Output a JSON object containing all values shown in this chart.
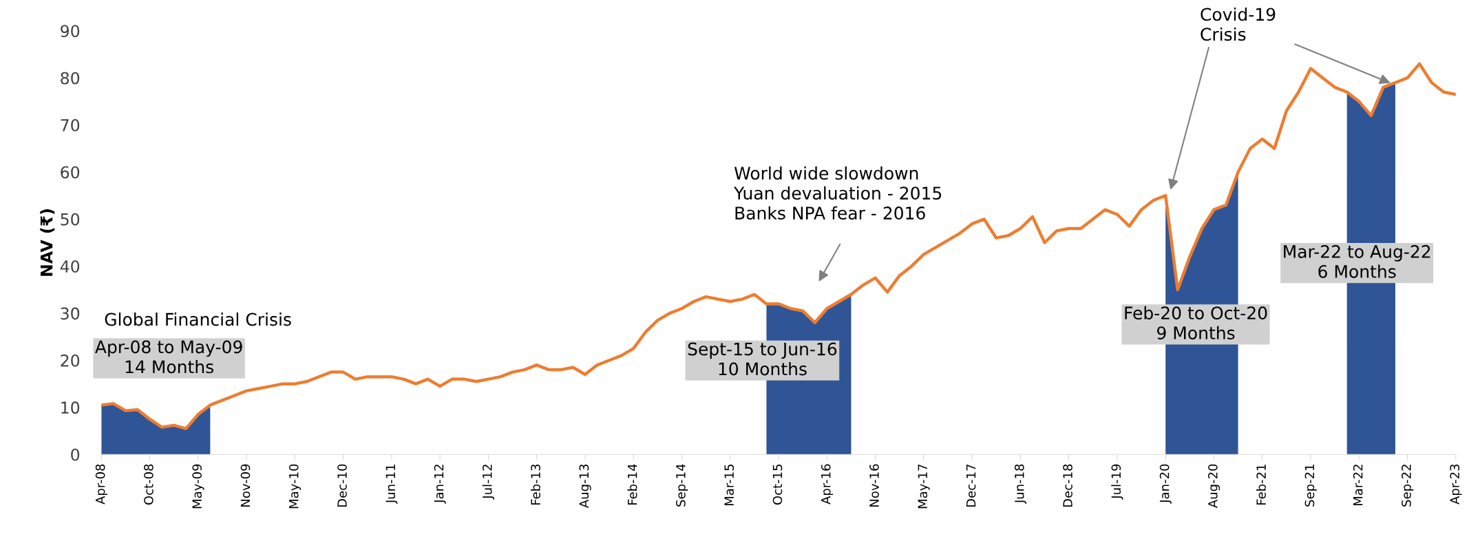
{
  "chart_data": {
    "type": "line",
    "ylabel": "NAV (₹)",
    "categories": [
      "Apr-08",
      null,
      null,
      null,
      "Oct-08",
      null,
      null,
      null,
      "May-09",
      null,
      null,
      null,
      "Nov-09",
      null,
      null,
      null,
      "May-10",
      null,
      null,
      null,
      "Dec-10",
      null,
      null,
      null,
      "Jun-11",
      null,
      null,
      null,
      "Jan-12",
      null,
      null,
      null,
      "Jul-12",
      null,
      null,
      null,
      "Feb-13",
      null,
      null,
      null,
      "Aug-13",
      null,
      null,
      null,
      "Feb-14",
      null,
      null,
      null,
      "Sep-14",
      null,
      null,
      null,
      "Mar-15",
      null,
      null,
      null,
      "Oct-15",
      null,
      null,
      null,
      "Apr-16",
      null,
      null,
      null,
      "Nov-16",
      null,
      null,
      null,
      "May-17",
      null,
      null,
      null,
      "Dec-17",
      null,
      null,
      null,
      "Jun-18",
      null,
      null,
      null,
      "Dec-18",
      null,
      null,
      null,
      "Jul-19",
      null,
      null,
      null,
      "Jan-20",
      null,
      null,
      null,
      "Aug-20",
      null,
      null,
      null,
      "Feb-21",
      null,
      null,
      null,
      "Sep-21",
      null,
      null,
      null,
      "Mar-22",
      null,
      null,
      null,
      "Sep-22",
      null,
      null,
      null,
      "Apr-23"
    ],
    "series": [
      {
        "type": "area",
        "color": "#2f5597",
        "values": [
          10.5,
          10.8,
          9.3,
          9.5,
          7.5,
          5.8,
          6.2,
          5.5,
          8.5,
          10.5,
          null,
          null,
          null,
          null,
          null,
          null,
          null,
          null,
          null,
          null,
          null,
          null,
          null,
          null,
          null,
          null,
          null,
          null,
          null,
          null,
          null,
          null,
          null,
          null,
          null,
          null,
          null,
          null,
          null,
          null,
          null,
          null,
          null,
          null,
          null,
          null,
          null,
          null,
          null,
          null,
          null,
          null,
          null,
          null,
          null,
          32,
          32,
          31,
          30.5,
          28,
          31,
          32.5,
          34,
          null,
          null,
          null,
          null,
          null,
          null,
          null,
          null,
          null,
          null,
          null,
          null,
          null,
          null,
          null,
          null,
          null,
          null,
          null,
          null,
          null,
          null,
          null,
          null,
          null,
          55,
          35,
          42,
          48,
          52,
          53,
          60,
          null,
          null,
          null,
          null,
          null,
          null,
          null,
          null,
          77,
          75,
          72,
          78,
          79,
          null,
          null,
          null,
          null,
          null
        ]
      },
      {
        "color": "#ed7d31",
        "values": [
          10.5,
          10.8,
          9.3,
          9.5,
          7.5,
          5.8,
          6.2,
          5.5,
          8.5,
          10.5,
          11.5,
          12.5,
          13.5,
          14,
          14.5,
          15,
          15,
          15.5,
          16.5,
          17.5,
          17.5,
          16,
          16.5,
          16.5,
          16.5,
          16,
          15,
          16,
          14.5,
          16,
          16,
          15.5,
          16,
          16.5,
          17.5,
          18,
          19,
          18,
          18,
          18.5,
          17,
          19,
          20,
          21,
          22.5,
          26,
          28.5,
          30,
          31,
          32.5,
          33.5,
          33,
          32.5,
          33,
          34,
          32,
          32,
          31,
          30.5,
          28,
          31,
          32.5,
          34,
          36,
          37.5,
          34.5,
          38,
          40,
          42.5,
          44,
          45.5,
          47,
          49,
          50,
          46,
          46.5,
          48,
          50.5,
          45,
          47.5,
          48,
          48,
          50,
          52,
          51,
          48.5,
          52,
          54,
          55,
          35,
          42,
          48,
          52,
          53,
          60,
          65,
          67,
          65,
          73,
          77,
          82,
          80,
          78,
          77,
          75,
          72,
          78,
          79,
          80,
          83,
          79,
          77,
          76.5
        ]
      }
    ],
    "ylim": [
      0,
      90
    ],
    "yticks": [
      0,
      10,
      20,
      30,
      40,
      50,
      60,
      70,
      80,
      90
    ],
    "grid": false,
    "legend": false,
    "annotations": [
      "Global Financial Crisis",
      "Apr-08 to May-09\n14 Months",
      "Sept-15 to Jun-16\n10 Months",
      "World wide slowdown\nYuan devaluation - 2015\nBanks NPA fear - 2016",
      "Feb-20 to Oct-20\n9 Months",
      "Mar-22 to Aug-22\n6 Months",
      "Covid-19\nCrisis"
    ]
  }
}
